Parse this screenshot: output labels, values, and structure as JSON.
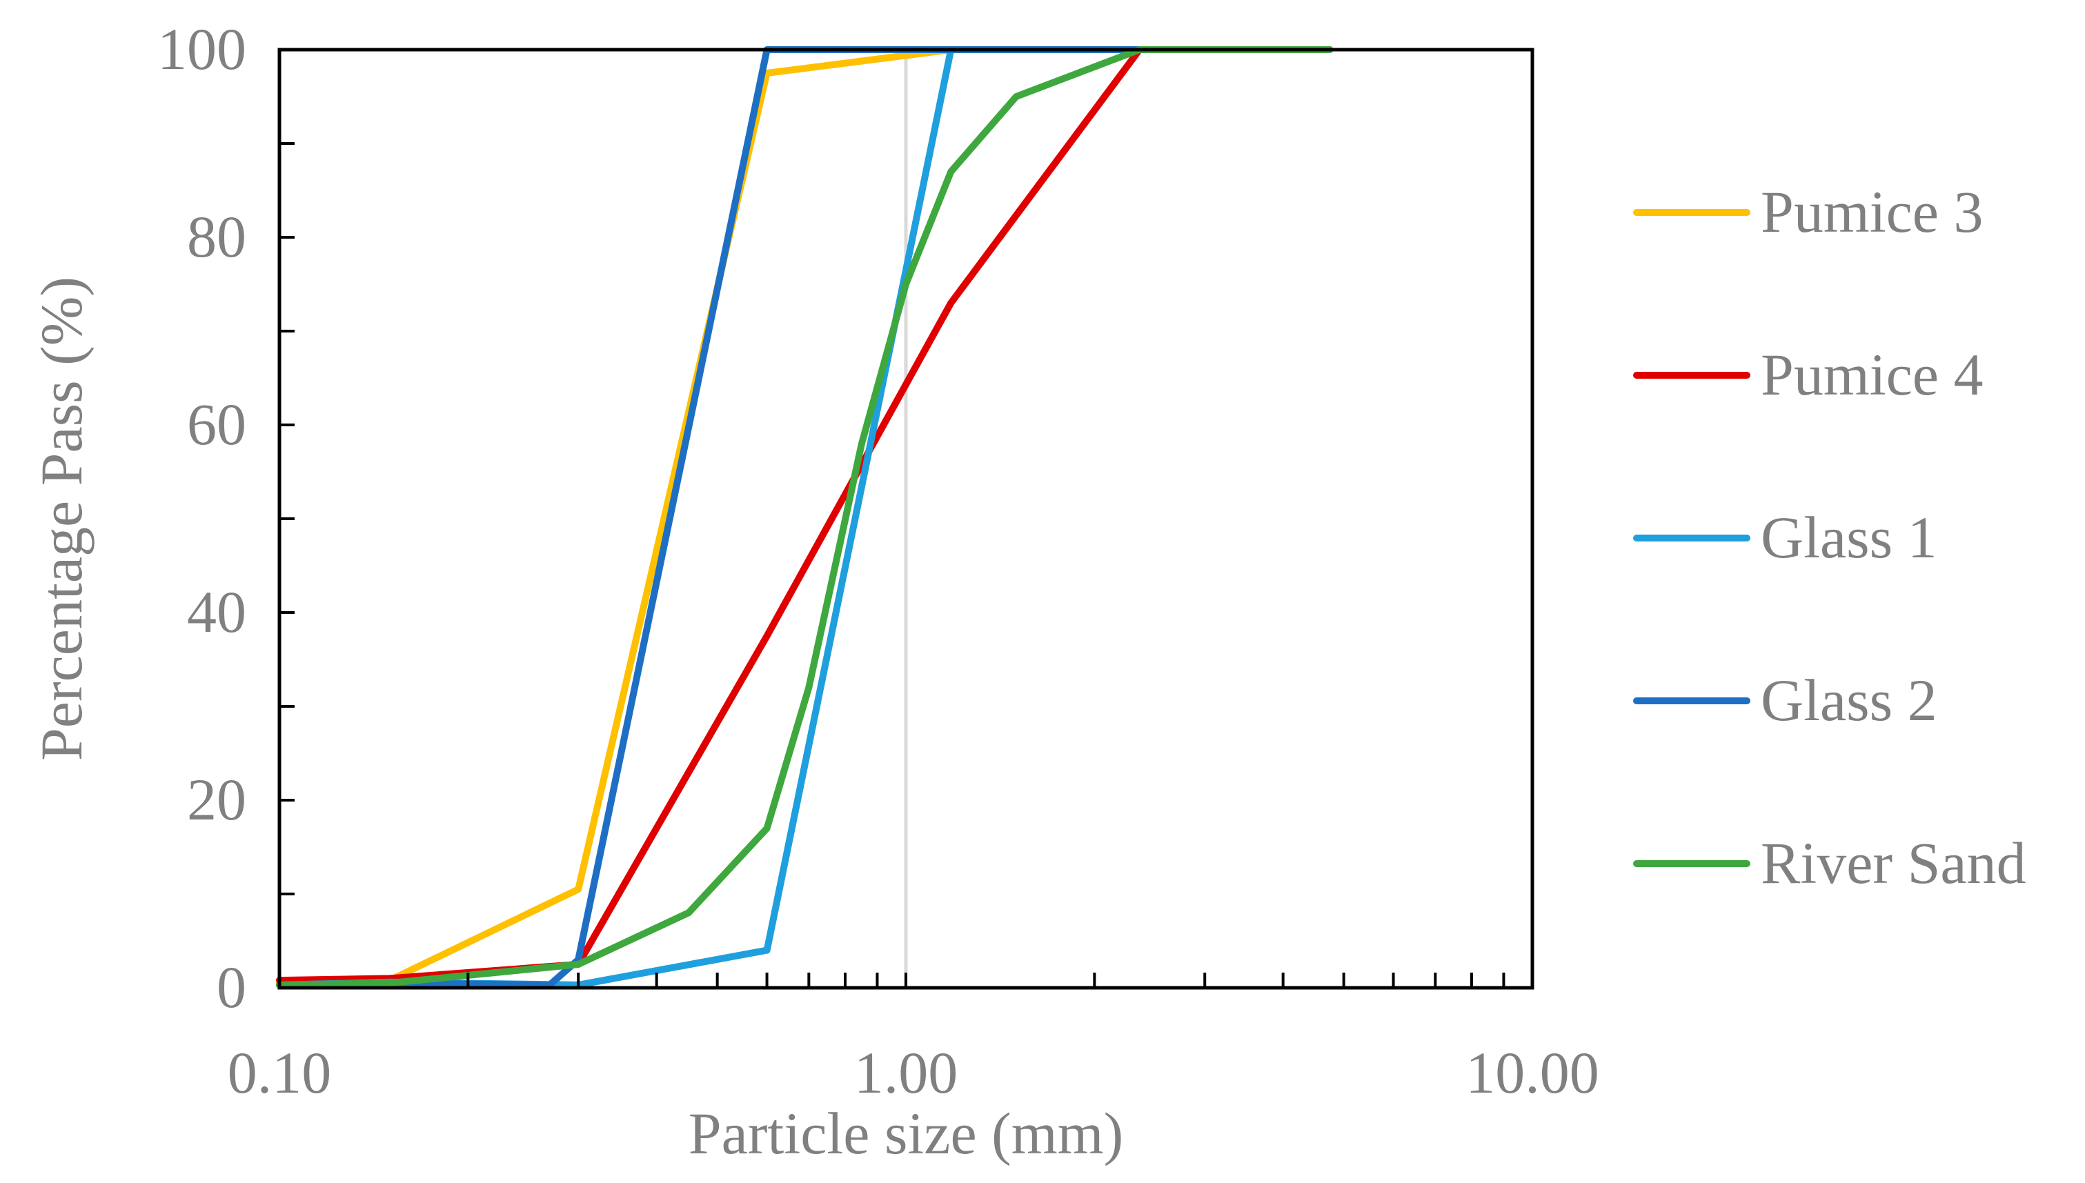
{
  "chart_data": {
    "type": "line",
    "title": "",
    "xlabel": "Particle size (mm)",
    "ylabel": "Percentage Pass (%)",
    "xscale": "log",
    "xlim": [
      0.1,
      10
    ],
    "ylim": [
      0,
      100
    ],
    "x_ticks": [
      0.1,
      1,
      10
    ],
    "x_tick_labels": [
      "0.10",
      "1.00",
      "10.00"
    ],
    "y_ticks": [
      0,
      20,
      40,
      60,
      80,
      100
    ],
    "y_tick_labels": [
      "0",
      "20",
      "40",
      "60",
      "80",
      "100"
    ],
    "gridlines": [
      {
        "axis": "x",
        "value": 1.0
      }
    ],
    "legend_position": "right",
    "series": [
      {
        "name": "Pumice 3",
        "color": "#FFC000",
        "x": [
          0.1,
          0.15,
          0.3,
          0.6,
          1.18,
          2.36,
          4.75
        ],
        "y": [
          0.5,
          0.8,
          10.5,
          97.5,
          100,
          100,
          100
        ]
      },
      {
        "name": "Pumice 4",
        "color": "#E00000",
        "x": [
          0.1,
          0.15,
          0.3,
          0.6,
          1.18,
          2.36,
          4.75
        ],
        "y": [
          0.8,
          1.0,
          2.5,
          37.5,
          73,
          100,
          100
        ]
      },
      {
        "name": "Glass 1",
        "color": "#1F9FDD",
        "x": [
          0.1,
          0.15,
          0.3,
          0.6,
          1.18,
          2.36,
          4.75
        ],
        "y": [
          0.3,
          0.6,
          0.3,
          4.0,
          100,
          100,
          100
        ]
      },
      {
        "name": "Glass 2",
        "color": "#1E6FC4",
        "x": [
          0.1,
          0.15,
          0.27,
          0.3,
          0.6,
          1.18,
          2.36
        ],
        "y": [
          0.3,
          0.5,
          0.3,
          3.0,
          100,
          100,
          100
        ]
      },
      {
        "name": "River Sand",
        "color": "#3EA83E",
        "x": [
          0.1,
          0.15,
          0.3,
          0.45,
          0.6,
          0.7,
          0.85,
          1.0,
          1.18,
          1.5,
          2.36,
          4.75
        ],
        "y": [
          0.3,
          0.5,
          2.5,
          8.0,
          17.0,
          32.0,
          58.0,
          75.0,
          87.0,
          95.0,
          100,
          100
        ]
      }
    ]
  }
}
